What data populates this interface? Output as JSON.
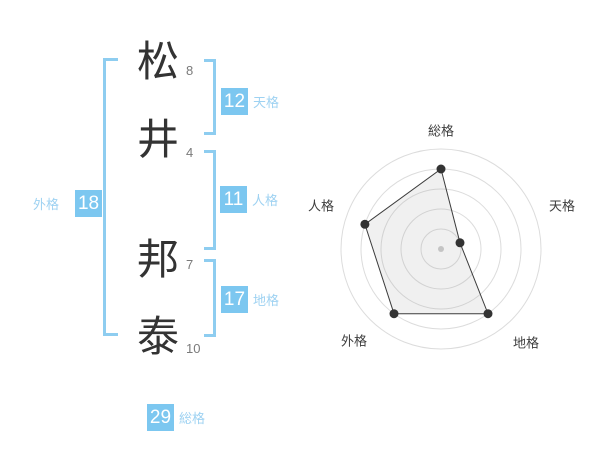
{
  "name": {
    "characters": [
      {
        "char": "松",
        "strokes": "8"
      },
      {
        "char": "井",
        "strokes": "4"
      },
      {
        "char": "邦",
        "strokes": "7"
      },
      {
        "char": "泰",
        "strokes": "10"
      }
    ],
    "grids": {
      "tenkaku": {
        "value": "12",
        "label": "天格"
      },
      "jinkaku": {
        "value": "11",
        "label": "人格"
      },
      "chikaku": {
        "value": "17",
        "label": "地格"
      },
      "gaikaku": {
        "value": "18",
        "label": "外格"
      },
      "soukaku": {
        "value": "29",
        "label": "総格"
      }
    }
  },
  "colors": {
    "badge_blue": "#7cc7f0",
    "badge_number_white": "#ffffff",
    "grid_label_blue": "#9ed2f2",
    "bracket_blue": "#8ecdf0",
    "kanji_dark": "#333333",
    "stroke_count_gray": "#7a7a7a"
  },
  "chart_data": {
    "type": "radar",
    "axes": [
      "総格",
      "天格",
      "地格",
      "外格",
      "人格"
    ],
    "values": [
      80,
      20,
      80,
      80,
      80
    ],
    "max": 100,
    "rings": 5,
    "start_axis": "top",
    "direction": "clockwise",
    "grid": "circular",
    "legend": "none",
    "colors": {
      "ring": "#dcdcdc",
      "line": "#3c3c3c",
      "fill": "rgba(150,150,150,0.14)",
      "point": "#333333",
      "center_dot": "#c4c4c4",
      "label": "#3d3d3d"
    }
  }
}
